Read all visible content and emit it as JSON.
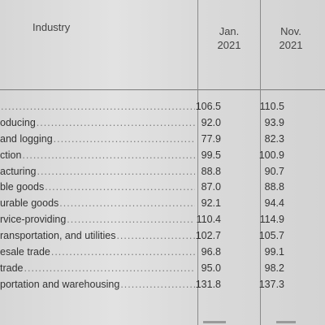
{
  "table": {
    "header": {
      "industry": "Industry",
      "col1": [
        "Jan.",
        "2021"
      ],
      "col2": [
        "Nov.",
        "2021"
      ]
    },
    "rows": [
      {
        "label": "",
        "jan": "106.5",
        "nov": "110.5"
      },
      {
        "label": "oducing",
        "jan": "92.0",
        "nov": "93.9"
      },
      {
        "label": "and logging",
        "jan": "77.9",
        "nov": "82.3"
      },
      {
        "label": "ction",
        "jan": "99.5",
        "nov": "100.9"
      },
      {
        "label": "acturing",
        "jan": "88.8",
        "nov": "90.7"
      },
      {
        "label": "ble goods",
        "jan": "87.0",
        "nov": "88.8"
      },
      {
        "label": "urable goods",
        "jan": "92.1",
        "nov": "94.4"
      },
      {
        "label": "rvice-providing",
        "jan": "110.4",
        "nov": "114.9"
      },
      {
        "label": "ransportation, and utilities",
        "jan": "102.7",
        "nov": "105.7"
      },
      {
        "label": "esale trade",
        "jan": "96.8",
        "nov": "99.1"
      },
      {
        "label": " trade",
        "jan": "95.0",
        "nov": "98.2"
      },
      {
        "label": "portation and warehousing",
        "jan": "131.8",
        "nov": "137.3"
      }
    ]
  }
}
